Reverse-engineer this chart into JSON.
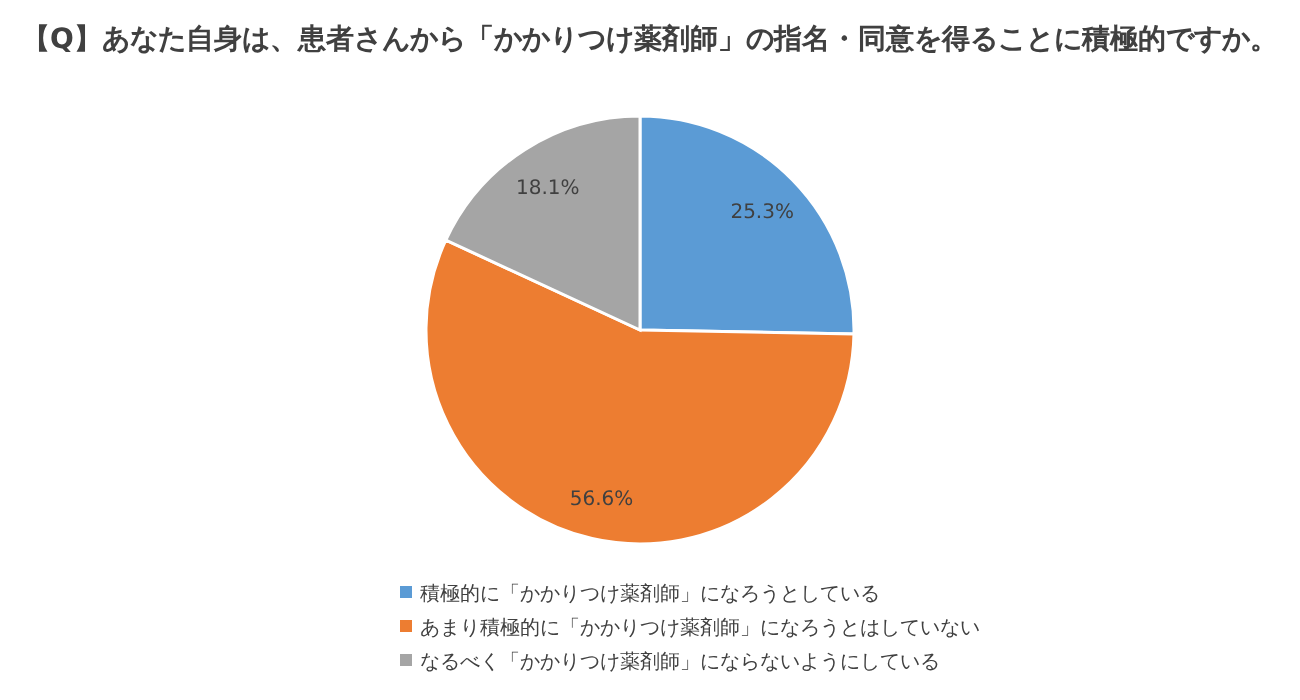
{
  "chart_data": {
    "type": "pie",
    "title": "【Q】あなた自身は、患者さんから「かかりつけ薬剤師」の指名・同意を得ることに積極的ですか。",
    "categories": [
      "積極的に「かかりつけ薬剤師」になろうとしている",
      "あまり積極的に「かかりつけ薬剤師」になろうとはしていない",
      "なるべく「かかりつけ薬剤師」にならないようにしている"
    ],
    "values": [
      25.3,
      56.6,
      18.1
    ],
    "colors": [
      "#5b9bd5",
      "#ed7d31",
      "#a5a5a5"
    ],
    "value_labels": [
      "25.3%",
      "56.6%",
      "18.1%"
    ],
    "legend": "bottom"
  }
}
